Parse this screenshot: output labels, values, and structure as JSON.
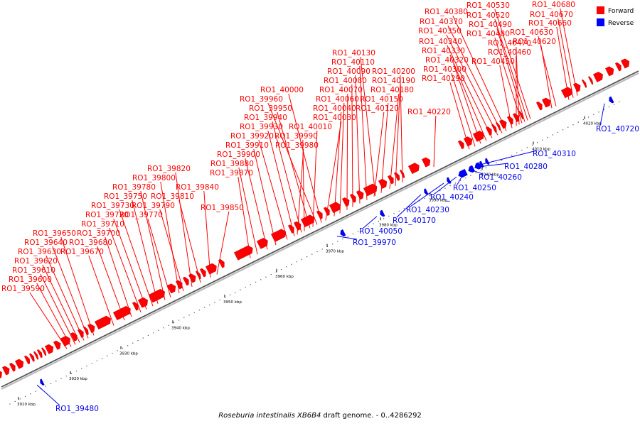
{
  "caption": {
    "species": "Roseburia intestinalis XB6B4",
    "rest": " draft genome. - 0..4286292"
  },
  "legend": {
    "forward": {
      "label": "Forward",
      "color": "#ff0000"
    },
    "reverse": {
      "label": "Reverse",
      "color": "#0000ff"
    }
  },
  "ruler": {
    "unit": "kbp",
    "ticks": [
      3910,
      3920,
      3930,
      3940,
      3950,
      3960,
      3970,
      3980,
      3990,
      4000,
      4010,
      4020
    ]
  },
  "forward_genes": [
    "RO1_39590",
    "RO1_39600",
    "RO1_39610",
    "RO1_39620",
    "RO1_39630",
    "RO1_39640",
    "RO1_39650",
    "RO1_39670",
    "RO1_39680",
    "RO1_39700",
    "RO1_39710",
    "RO1_39720",
    "RO1_39730",
    "RO1_39750",
    "RO1_39780",
    "RO1_39800",
    "RO1_39820",
    "RO1_39770",
    "RO1_39790",
    "RO1_39810",
    "RO1_39840",
    "RO1_39850",
    "RO1_39870",
    "RO1_39880",
    "RO1_39900",
    "RO1_39910",
    "RO1_39920",
    "RO1_39930",
    "RO1_39940",
    "RO1_39950",
    "RO1_39960",
    "RO1_40000",
    "RO1_39980",
    "RO1_39990",
    "RO1_40010",
    "RO1_40030",
    "RO1_40040",
    "RO1_40060",
    "RO1_40070",
    "RO1_40080",
    "RO1_40090",
    "RO1_40110",
    "RO1_40130",
    "RO1_40120",
    "RO1_40150",
    "RO1_40180",
    "RO1_40190",
    "RO1_40200",
    "RO1_40220",
    "RO1_40290",
    "RO1_40300",
    "RO1_40320",
    "RO1_40330",
    "RO1_40340",
    "RO1_40350",
    "RO1_40370",
    "RO1_40380",
    "RO1_40450",
    "RO1_40460",
    "RO1_40470",
    "RO1_40480",
    "RO1_40490",
    "RO1_40520",
    "RO1_40530",
    "RO1_40620",
    "RO1_40630",
    "RO1_40660",
    "RO1_40670",
    "RO1_40680"
  ],
  "reverse_genes": [
    "RO1_39480",
    "RO1_39970",
    "RO1_40050",
    "RO1_40170",
    "RO1_40230",
    "RO1_40240",
    "RO1_40250",
    "RO1_40260",
    "RO1_40280",
    "RO1_40310",
    "RO1_40720"
  ]
}
